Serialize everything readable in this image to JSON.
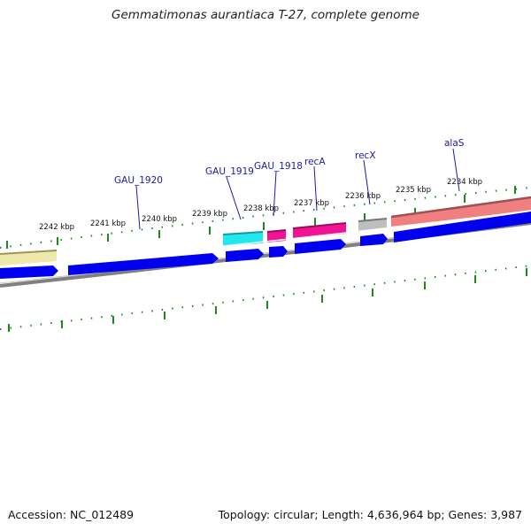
{
  "title": "Gemmatimonas aurantiaca T-27, complete genome",
  "accession": "Accession: NC_012489",
  "topology": "Topology: circular; Length: 4,636,964 bp; Genes: 3,987",
  "kbp_labels": [
    "2242 kbp",
    "2241 kbp",
    "2240 kbp",
    "2239 kbp",
    "2238 kbp",
    "2237 kbp",
    "2236 kbp",
    "2235 kbp",
    "2234 kbp"
  ],
  "gene_labels": [
    "GAU_1920",
    "GAU_1919",
    "GAU_1918",
    "recA",
    "recX",
    "alaS"
  ],
  "colors": {
    "cds": "#0000ee",
    "tick": "#1a8a1a",
    "backbone": "#808080",
    "gene_label": "#1a1aa8",
    "khaki": "#eee8aa",
    "cyan": "#22e8ee",
    "magenta": "#ee1493",
    "gray_feature": "#bebebe",
    "salmon": "#f08080"
  }
}
